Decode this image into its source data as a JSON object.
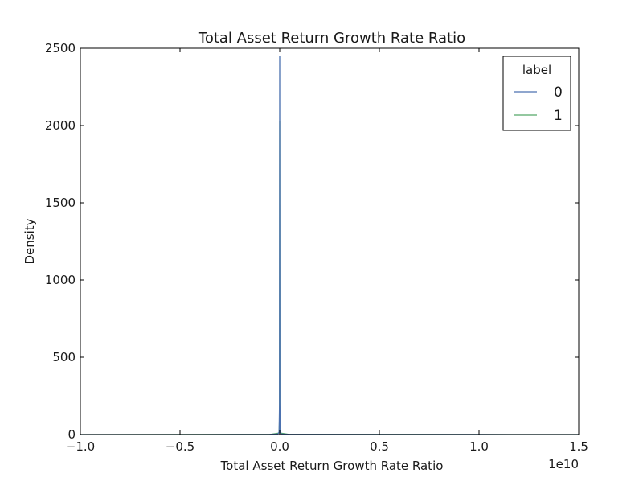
{
  "chart_data": {
    "type": "line",
    "title": "Total Asset Return Growth Rate Ratio",
    "xlabel": "Total Asset Return Growth Rate Ratio",
    "ylabel": "Density",
    "x_offset_label": "1e10",
    "xlim": [
      -1.0,
      1.5
    ],
    "ylim": [
      0,
      2500
    ],
    "x_ticks": [
      -1.0,
      -0.5,
      0.0,
      0.5,
      1.0,
      1.5
    ],
    "x_tick_labels": [
      "−1.0",
      "−0.5",
      "0.0",
      "0.5",
      "1.0",
      "1.5"
    ],
    "y_ticks": [
      0,
      500,
      1000,
      1500,
      2000,
      2500
    ],
    "y_tick_labels": [
      "0",
      "500",
      "1000",
      "1500",
      "2000",
      "2500"
    ],
    "grid": false,
    "legend": {
      "title": "label",
      "placement": "top-right"
    },
    "series": [
      {
        "name": "0",
        "color": "#4c72b0",
        "points": [
          [
            -1.0,
            0
          ],
          [
            -0.4,
            0
          ],
          [
            -0.05,
            1
          ],
          [
            -0.01,
            3
          ],
          [
            -0.003,
            15
          ],
          [
            -0.001,
            200
          ],
          [
            0.0,
            2450
          ],
          [
            0.001,
            200
          ],
          [
            0.003,
            15
          ],
          [
            0.01,
            3
          ],
          [
            0.05,
            1
          ],
          [
            0.6,
            0.5
          ],
          [
            1.0,
            0.3
          ],
          [
            1.22,
            0.1
          ],
          [
            1.5,
            0
          ]
        ]
      },
      {
        "name": "1",
        "color": "#55a868",
        "points": [
          [
            -1.0,
            0
          ],
          [
            -0.05,
            0.5
          ],
          [
            -0.003,
            10
          ],
          [
            -0.001,
            100
          ],
          [
            0.0,
            2030
          ],
          [
            0.001,
            100
          ],
          [
            0.003,
            10
          ],
          [
            0.05,
            0.5
          ],
          [
            1.5,
            0
          ]
        ]
      }
    ]
  }
}
